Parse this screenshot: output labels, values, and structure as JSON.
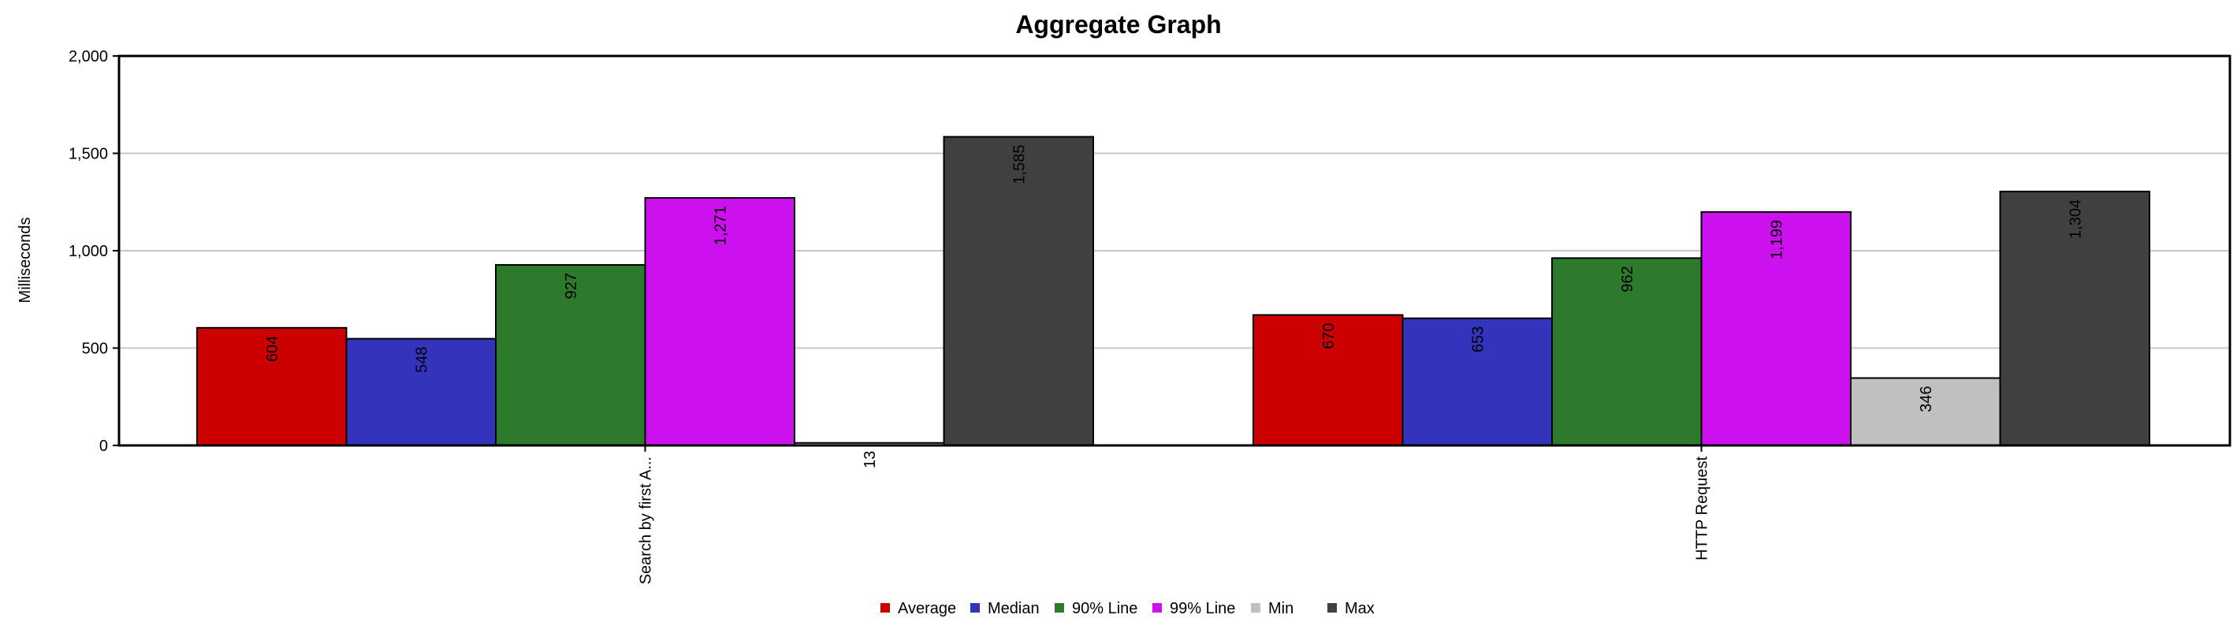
{
  "chart_data": {
    "type": "bar",
    "title": "Aggregate Graph",
    "ylabel": "Milliseconds",
    "xlabel": "",
    "ylim": [
      0,
      2000
    ],
    "yticks": [
      0,
      500,
      1000,
      1500,
      2000
    ],
    "ytick_labels": [
      "0",
      "500",
      "1,000",
      "1,500",
      "2,000"
    ],
    "grid": true,
    "legend_position": "bottom",
    "categories": [
      "Search by first A...",
      "HTTP Request"
    ],
    "series": [
      {
        "name": "Average",
        "color": "#cc0000",
        "values": [
          604,
          670
        ],
        "labels": [
          "604",
          "670"
        ]
      },
      {
        "name": "Median",
        "color": "#3333bb",
        "values": [
          548,
          653
        ],
        "labels": [
          "548",
          "653"
        ]
      },
      {
        "name": "90% Line",
        "color": "#2d7a2d",
        "values": [
          927,
          962
        ],
        "labels": [
          "927",
          "962"
        ]
      },
      {
        "name": "99% Line",
        "color": "#cc11ee",
        "values": [
          1271,
          1199
        ],
        "labels": [
          "1,271",
          "1,199"
        ]
      },
      {
        "name": "Min",
        "color": "#c0c0c0",
        "values": [
          13,
          346
        ],
        "labels": [
          "13",
          "346"
        ]
      },
      {
        "name": "Max",
        "color": "#404040",
        "values": [
          1585,
          1304
        ],
        "labels": [
          "1,585",
          "1,304"
        ]
      }
    ]
  }
}
